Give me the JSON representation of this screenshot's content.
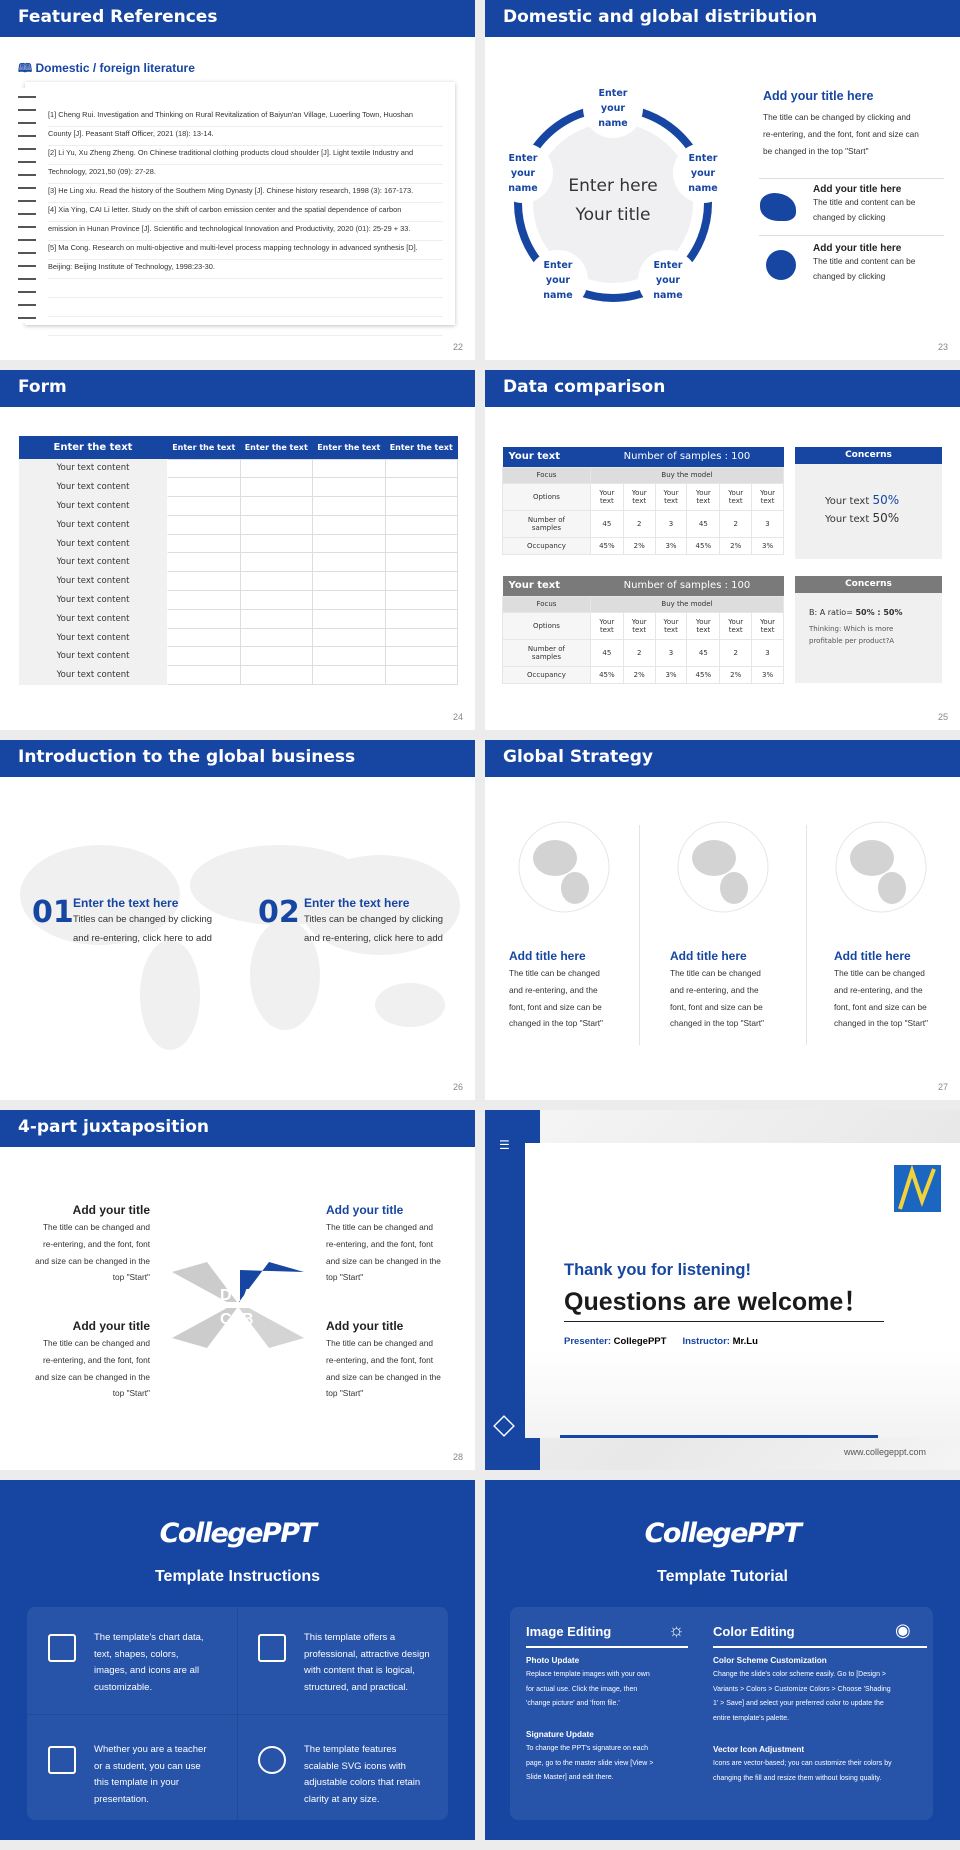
{
  "colors": {
    "accent": "#1746a2",
    "gap": "#ececec"
  },
  "s22": {
    "header": "Featured References",
    "subtitle": "Domestic / foreign literature",
    "icon": "book-icon",
    "page": "22",
    "lines": [
      "[1] Cheng Rui. Investigation and Thinking on Rural Revitalization of Baiyun'an Village, Luoerling Town, Huoshan",
      "County [J]. Peasant Staff Officer, 2021 (18): 13-14.",
      "[2] Li Yu, Xu Zheng Zheng. On Chinese traditional clothing products cloud shoulder [J]. Light textile Industry and",
      "Technology, 2021,50 (09): 27-28.",
      "[3] He Ling xiu. Read the history of the Southern Ming Dynasty [J]. Chinese history research, 1998 (3): 167-173.",
      "[4] Xia Ying, CAI Li letter. Study on the shift of carbon emission center and the spatial dependence of carbon",
      "emission in Hunan Province [J]. Scientific and technological Innovation and Productivity, 2020 (01): 25-29 + 33.",
      "[5] Ma Cong. Research on multi-objective and multi-level process mapping technology in advanced synthesis [D].",
      "Beijing: Beijing Institute of Technology, 1998:23-30."
    ]
  },
  "s23": {
    "header": "Domestic and global distribution",
    "page": "23",
    "center1": "Enter here",
    "center2": "Your title",
    "node": [
      "Enter",
      "your",
      "name"
    ],
    "title": "Add your title here",
    "body": [
      "The title can be changed by clicking and",
      "re-entering, and the font, font and size can",
      "be changed in the top \"Start\""
    ],
    "items": [
      {
        "icon": "china-map-icon",
        "title": "Add your title here",
        "lines": [
          "The title and content can be",
          "changed by clicking"
        ]
      },
      {
        "icon": "globe-icon",
        "title": "Add your title here",
        "lines": [
          "The title and content can be",
          "changed by clicking"
        ]
      }
    ]
  },
  "s24": {
    "header": "Form",
    "page": "24",
    "columns": [
      "Enter the text",
      "Enter the text",
      "Enter the text",
      "Enter the text",
      "Enter the text"
    ],
    "row_label": "Your text content",
    "row_count": 12
  },
  "s25": {
    "header": "Data comparison",
    "page": "25",
    "tables": [
      {
        "title": "Your text",
        "samples": "Number of samples : 100",
        "color": "#1746a2"
      },
      {
        "title": "Your text",
        "samples": "Number of samples : 100",
        "color": "#7a7a7a"
      }
    ],
    "focus": "Focus",
    "buy": "Buy the model",
    "options": "Options",
    "option_cell": [
      "Your",
      "text"
    ],
    "nsamples": [
      "Number of",
      "samples"
    ],
    "occupancy": "Occupancy",
    "counts": [
      "45",
      "2",
      "3",
      "45",
      "2",
      "3"
    ],
    "occ": [
      "45%",
      "2%",
      "3%",
      "45%",
      "2%",
      "3%"
    ],
    "concerns": "Concerns",
    "c1": [
      {
        "t": "Your text ",
        "v": "50%"
      },
      {
        "t": "Your text ",
        "v": "50%"
      }
    ],
    "ratio_label": "B: A ratio= ",
    "ratio": "50% : 50%",
    "thinking": [
      "Thinking: Which is more",
      "profitable per product?A"
    ]
  },
  "s26": {
    "header": "Introduction to the global business",
    "page": "26",
    "items": [
      {
        "num": "01",
        "title": "Enter the text here",
        "lines": [
          "Titles can be changed by clicking",
          "and re-entering, click here to add"
        ]
      },
      {
        "num": "02",
        "title": "Enter the text here",
        "lines": [
          "Titles can be changed by clicking",
          "and re-entering, click here to add"
        ]
      }
    ]
  },
  "s27": {
    "header": "Global Strategy",
    "page": "27",
    "title": "Add title here",
    "lines": [
      "The title can be changed",
      "and re-entering, and the",
      "font, font and size can be",
      "changed in the top \"Start\""
    ]
  },
  "s28": {
    "header": "4-part juxtaposition",
    "page": "28",
    "title": "Add your title",
    "lines": [
      "The title can be changed and",
      "re-entering, and the font, font",
      "and size can be changed in the",
      "top \"Start\""
    ],
    "letters": [
      "A",
      "B",
      "C",
      "D"
    ]
  },
  "s29": {
    "thanks": "Thank you for listening!",
    "questions": "Questions are welcome！",
    "presenter_label": "Presenter: ",
    "presenter": "CollegePPT",
    "instructor_label": "Instructor: ",
    "instructor": "Mr.Lu",
    "url": "www.collegeppt.com"
  },
  "s30": {
    "logo": "CollegePPT",
    "title": "Template Instructions",
    "cells": [
      {
        "icon": "presentation-icon",
        "text": [
          "The template's chart data,",
          "text, shapes, colors,",
          "images, and icons are all",
          "customizable."
        ]
      },
      {
        "icon": "layers-icon",
        "text": [
          "This template offers a",
          "professional, attractive design",
          "with content that is logical,",
          "structured, and practical."
        ]
      },
      {
        "icon": "user-board-icon",
        "text": [
          "Whether you are a teacher",
          "or a student, you can use",
          "this template in your",
          "presentation."
        ]
      },
      {
        "icon": "basketball-icon",
        "text": [
          "The template features",
          "scalable SVG icons with",
          "adjustable colors that retain",
          "clarity at any size."
        ]
      }
    ]
  },
  "s31": {
    "logo": "CollegePPT",
    "title": "Template Tutorial",
    "cols": [
      {
        "heading": "Image Editing",
        "icon": "lightbulb-icon",
        "sections": [
          {
            "h": "Photo Update",
            "lines": [
              "Replace template images with your own",
              "for actual use. Click the image, then",
              "'change picture' and 'from file.'"
            ]
          },
          {
            "h": "Signature Update",
            "lines": [
              "To change the PPT's signature on each",
              "page, go to the master slide view [View >",
              "Slide Master] and edit there."
            ]
          }
        ]
      },
      {
        "heading": "Color Editing",
        "icon": "palette-icon",
        "sections": [
          {
            "h": "Color Scheme Customization",
            "lines": [
              "Change the slide's color scheme easily. Go to [Design >",
              "Variants > Colors > Customize Colors > Choose 'Shading",
              "1' > Save] and select your preferred color to update the",
              "entire template's palette."
            ]
          },
          {
            "h": "Vector Icon Adjustment",
            "lines": [
              "Icons are vector-based; you can customize their colors by",
              "changing the fill and resize them without losing quality."
            ]
          }
        ]
      }
    ]
  }
}
